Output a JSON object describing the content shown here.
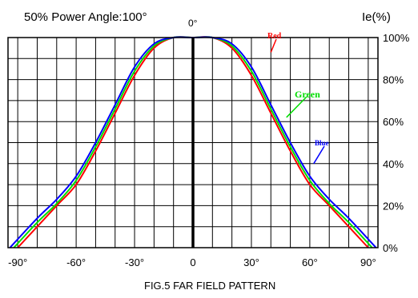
{
  "chart_data": {
    "type": "line",
    "title": "50% Power Angle:100°",
    "caption": "FIG.5 FAR FIELD PATTERN",
    "ylabel": "Ie(%)",
    "top_label": "0°",
    "xlim": [
      -95,
      95
    ],
    "ylim": [
      0,
      100
    ],
    "x_ticks": [
      -90,
      -60,
      -30,
      0,
      30,
      60,
      90
    ],
    "x_tick_labels": [
      "-90°",
      "-60°",
      "-30°",
      "0",
      "30°",
      "60°",
      "90°"
    ],
    "y_ticks": [
      0,
      20,
      40,
      60,
      80,
      100
    ],
    "y_tick_labels": [
      "0%",
      "20%",
      "40%",
      "60%",
      "80%",
      "100%"
    ],
    "grid": true,
    "series": [
      {
        "name": "Red",
        "color": "#ff0000",
        "x": [
          -90,
          -80,
          -70,
          -60,
          -50,
          -40,
          -30,
          -20,
          -10,
          0,
          10,
          20,
          30,
          40,
          50,
          60,
          70,
          80,
          90
        ],
        "y": [
          0,
          10,
          20,
          30,
          46,
          64,
          82,
          95,
          100,
          100,
          100,
          95,
          82,
          64,
          46,
          30,
          20,
          10,
          0
        ]
      },
      {
        "name": "Green",
        "color": "#00dd00",
        "x": [
          -92,
          -80,
          -70,
          -60,
          -50,
          -40,
          -30,
          -20,
          -10,
          0,
          10,
          20,
          30,
          40,
          50,
          60,
          70,
          80,
          92
        ],
        "y": [
          0,
          12,
          21,
          32,
          48,
          66,
          84,
          96,
          100,
          100,
          100,
          96,
          84,
          66,
          48,
          32,
          21,
          12,
          0
        ]
      },
      {
        "name": "Blue",
        "color": "#0000ff",
        "x": [
          -94,
          -80,
          -70,
          -60,
          -50,
          -40,
          -30,
          -20,
          -10,
          0,
          10,
          20,
          30,
          40,
          50,
          60,
          70,
          80,
          94
        ],
        "y": [
          0,
          14,
          23,
          34,
          50,
          68,
          86,
          97,
          100,
          100,
          100,
          97,
          86,
          68,
          50,
          34,
          23,
          14,
          0
        ]
      }
    ]
  }
}
